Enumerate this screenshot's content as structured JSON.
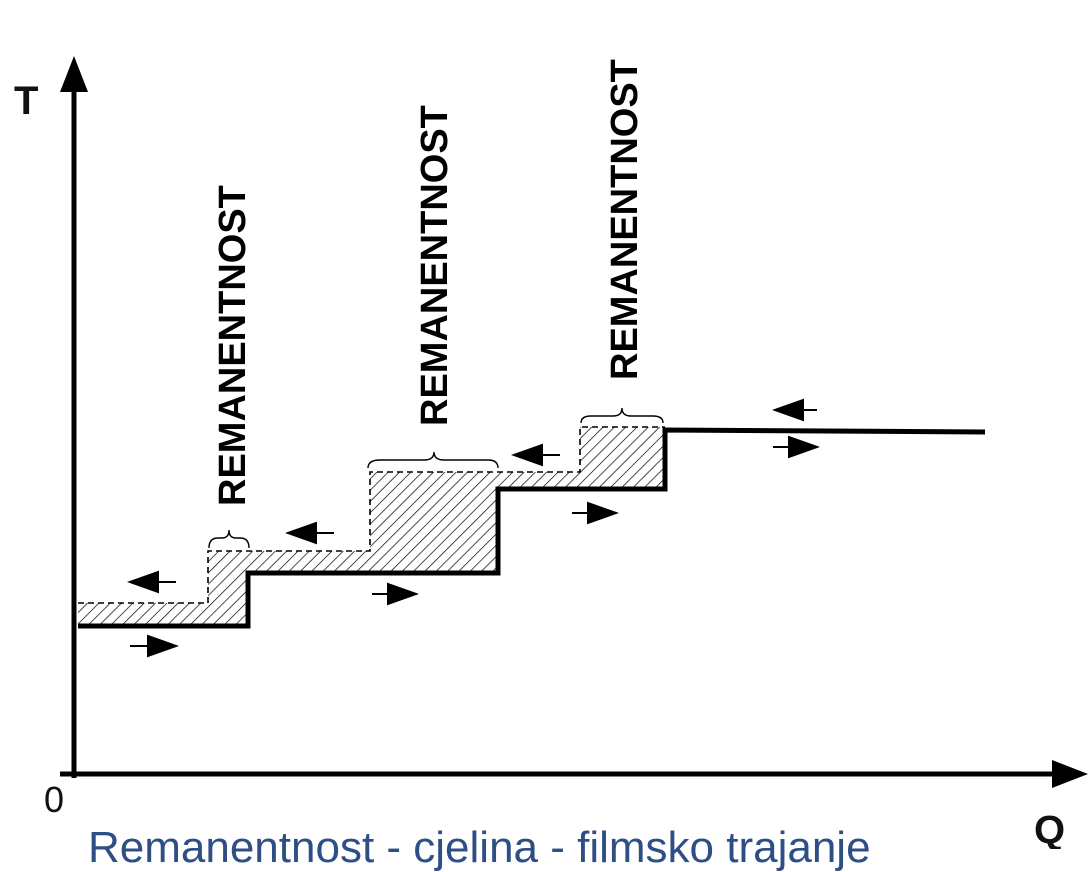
{
  "axes": {
    "y_label": "T",
    "x_label": "Q",
    "origin_label": "0"
  },
  "remanence_labels": [
    {
      "text": "REMANENTNOST"
    },
    {
      "text": "REMANENTNOST"
    },
    {
      "text": "REMANENTNOST"
    }
  ],
  "caption": "Remanentnost - cjelina - filmsko trajanje",
  "colors": {
    "line": "#000000",
    "caption": "#2e4f86",
    "background": "#ffffff"
  }
}
